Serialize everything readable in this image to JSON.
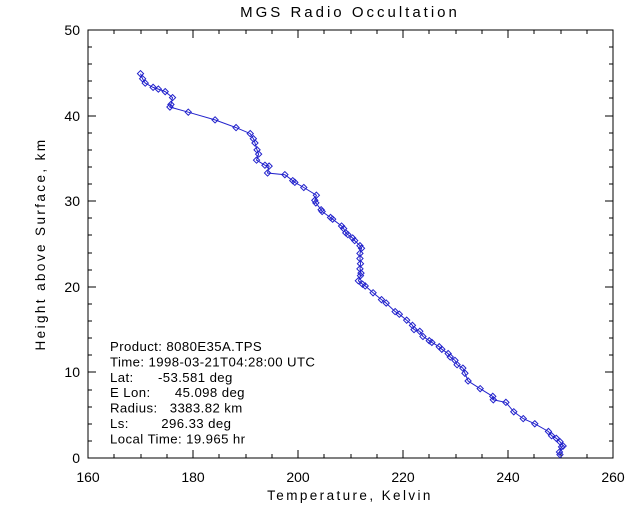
{
  "window": {
    "background": "#FFFFFF"
  },
  "colors": {
    "curve": "#2222CC",
    "axis": "#000000",
    "text": "#000000"
  },
  "annotation": {
    "lines": [
      "Product: 8080E35A.TPS",
      "Time: 1998-03-21T04:28:00 UTC",
      "Lat:      -53.581 deg",
      "E Lon:      45.098 deg",
      "Radius:   3383.82 km",
      "Ls:        296.33 deg",
      "Local Time: 19.965 hr"
    ]
  },
  "chart_data": {
    "type": "line",
    "title": "MGS Radio Occultation",
    "xlabel": "Temperature, Kelvin",
    "ylabel": "Height above Surface, km",
    "xlim": [
      160,
      260
    ],
    "ylim": [
      0,
      50
    ],
    "x_major_ticks": [
      160,
      180,
      200,
      220,
      240,
      260
    ],
    "x_minor_step": 5,
    "y_major_ticks": [
      0,
      10,
      20,
      30,
      40,
      50
    ],
    "y_minor_step": 2,
    "grid": false,
    "legend": "none",
    "marker": "open-diamond",
    "line_color": "#2222CC",
    "series": [
      {
        "name": "temperature-profile",
        "points": [
          [
            170.0,
            44.9
          ],
          [
            170.4,
            44.3
          ],
          [
            170.9,
            43.8
          ],
          [
            172.4,
            43.3
          ],
          [
            173.4,
            43.1
          ],
          [
            174.7,
            42.8
          ],
          [
            176.1,
            42.1
          ],
          [
            175.8,
            41.3
          ],
          [
            175.6,
            41.0
          ],
          [
            179.1,
            40.4
          ],
          [
            184.2,
            39.5
          ],
          [
            188.2,
            38.6
          ],
          [
            190.9,
            37.9
          ],
          [
            191.5,
            37.3
          ],
          [
            191.8,
            36.8
          ],
          [
            192.2,
            36.0
          ],
          [
            192.5,
            35.5
          ],
          [
            192.1,
            34.8
          ],
          [
            193.7,
            34.2
          ],
          [
            194.5,
            34.1
          ],
          [
            194.2,
            33.3
          ],
          [
            197.5,
            33.1
          ],
          [
            199.0,
            32.4
          ],
          [
            199.4,
            32.2
          ],
          [
            201.1,
            31.6
          ],
          [
            203.5,
            30.7
          ],
          [
            203.2,
            30.1
          ],
          [
            203.4,
            29.8
          ],
          [
            204.4,
            29.0
          ],
          [
            204.6,
            28.8
          ],
          [
            206.2,
            28.1
          ],
          [
            206.6,
            27.9
          ],
          [
            208.3,
            27.1
          ],
          [
            208.7,
            26.8
          ],
          [
            209.1,
            26.3
          ],
          [
            209.5,
            26.1
          ],
          [
            210.4,
            25.7
          ],
          [
            210.8,
            25.4
          ],
          [
            211.8,
            24.8
          ],
          [
            212.1,
            24.5
          ],
          [
            211.8,
            23.9
          ],
          [
            211.8,
            23.3
          ],
          [
            211.9,
            22.7
          ],
          [
            211.8,
            22.1
          ],
          [
            212.0,
            21.6
          ],
          [
            211.9,
            21.3
          ],
          [
            211.5,
            20.7
          ],
          [
            212.3,
            20.3
          ],
          [
            212.8,
            20.1
          ],
          [
            214.3,
            19.3
          ],
          [
            215.9,
            18.5
          ],
          [
            216.8,
            18.1
          ],
          [
            218.5,
            17.1
          ],
          [
            219.3,
            16.8
          ],
          [
            220.7,
            16.1
          ],
          [
            221.8,
            15.5
          ],
          [
            222.1,
            15.0
          ],
          [
            223.2,
            14.8
          ],
          [
            223.8,
            14.2
          ],
          [
            225.0,
            13.7
          ],
          [
            225.5,
            13.5
          ],
          [
            226.9,
            13.0
          ],
          [
            227.4,
            12.7
          ],
          [
            228.6,
            12.2
          ],
          [
            229.0,
            11.8
          ],
          [
            229.9,
            11.4
          ],
          [
            230.3,
            10.9
          ],
          [
            231.4,
            10.5
          ],
          [
            231.8,
            9.9
          ],
          [
            232.4,
            9.0
          ],
          [
            234.7,
            8.1
          ],
          [
            237.1,
            7.2
          ],
          [
            237.2,
            6.8
          ],
          [
            239.6,
            6.5
          ],
          [
            241.1,
            5.4
          ],
          [
            242.9,
            4.6
          ],
          [
            245.1,
            4.0
          ],
          [
            247.7,
            3.1
          ],
          [
            248.3,
            2.6
          ],
          [
            249.2,
            2.3
          ],
          [
            249.9,
            1.9
          ],
          [
            250.5,
            1.4
          ],
          [
            250.2,
            1.3
          ],
          [
            249.8,
            0.7
          ],
          [
            249.9,
            0.4
          ]
        ]
      }
    ]
  }
}
